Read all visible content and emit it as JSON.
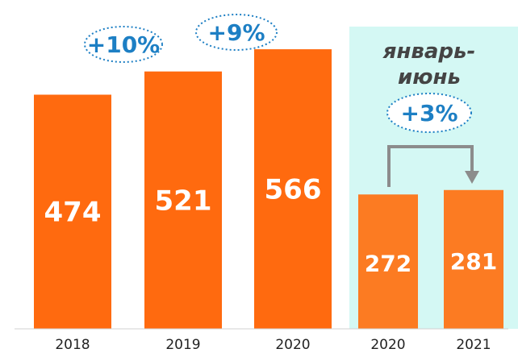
{
  "chart_data": {
    "type": "bar",
    "categories": [
      "2018",
      "2019",
      "2020",
      "2020",
      "2021"
    ],
    "values": [
      474,
      521,
      566,
      272,
      281
    ],
    "ylim": [
      0,
      620
    ],
    "highlight": {
      "title_line1": "январь-",
      "title_line2": "июнь",
      "categories_index": [
        3,
        4
      ],
      "background": "#d4f8f4"
    },
    "growth_labels": [
      "+10%",
      "+9%",
      "+3%"
    ],
    "colors": {
      "bar_annual": "#ff6a0f",
      "bar_halfyear": "#fc7b22",
      "growth_text": "#1d7fc4",
      "arrow": "#8c8c8c",
      "value_text": "#ffffff",
      "tick_text": "#222222"
    }
  }
}
